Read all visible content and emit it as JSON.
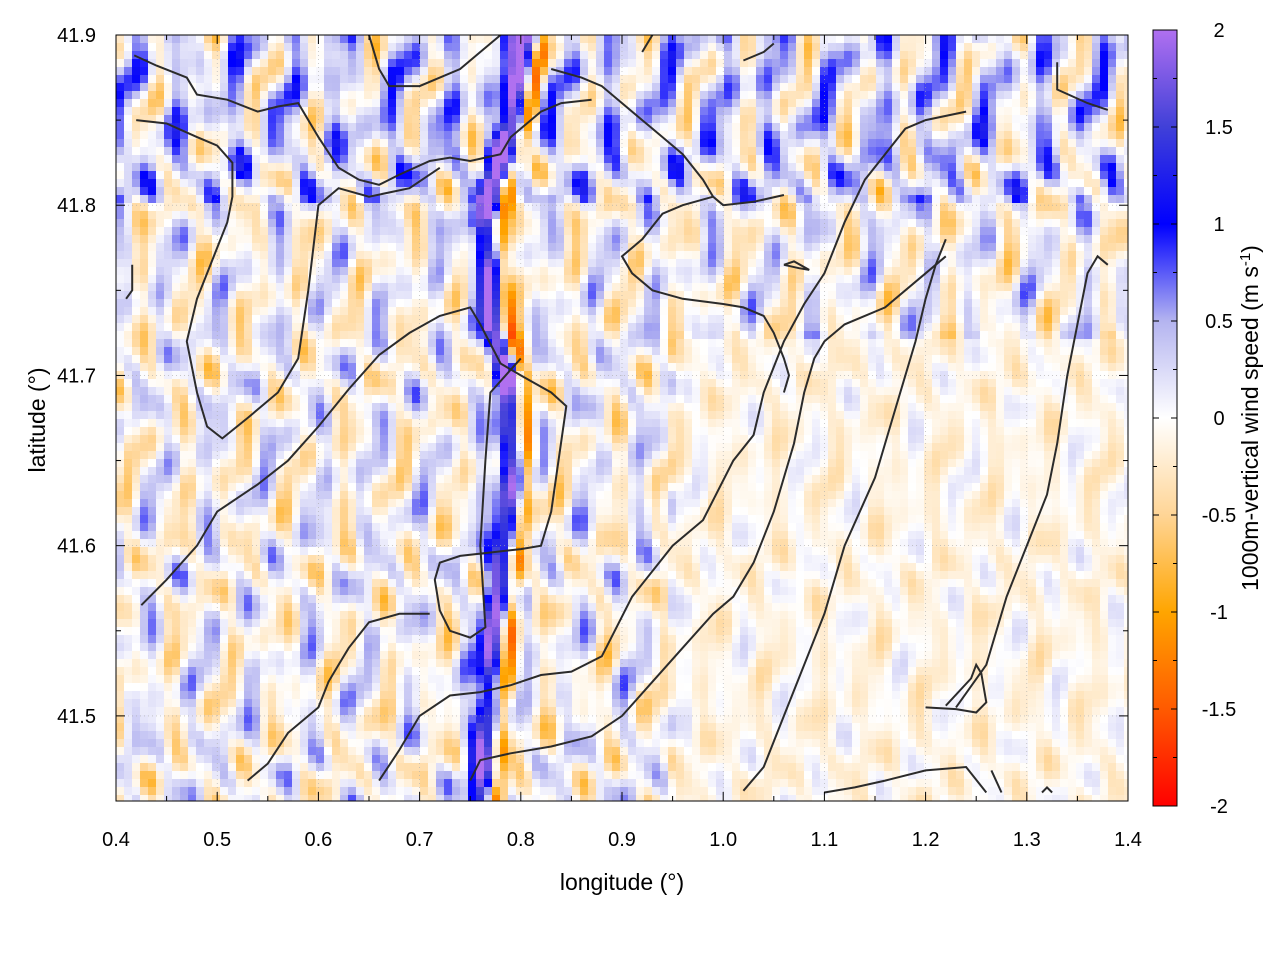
{
  "chart_data": {
    "type": "heatmap",
    "xlabel": "longitude (°)",
    "ylabel": "latitude (°)",
    "colorbar_label": "1000m-vertical wind speed (m s-1)",
    "colorbar_label_base": "1000m-vertical wind speed (m s",
    "colorbar_label_sup": "-1",
    "colorbar_label_end": ")",
    "xlim": [
      0.4,
      1.4
    ],
    "ylim": [
      41.45,
      41.9
    ],
    "clim": [
      -2,
      2
    ],
    "x_ticks": [
      {
        "value": 0.4,
        "label": "0.4"
      },
      {
        "value": 0.5,
        "label": "0.5"
      },
      {
        "value": 0.6,
        "label": "0.6"
      },
      {
        "value": 0.7,
        "label": "0.7"
      },
      {
        "value": 0.8,
        "label": "0.8"
      },
      {
        "value": 0.9,
        "label": "0.9"
      },
      {
        "value": 1.0,
        "label": "1.0"
      },
      {
        "value": 1.1,
        "label": "1.1"
      },
      {
        "value": 1.2,
        "label": "1.2"
      },
      {
        "value": 1.3,
        "label": "1.3"
      },
      {
        "value": 1.4,
        "label": "1.4"
      }
    ],
    "y_ticks": [
      {
        "value": 41.5,
        "label": "41.5"
      },
      {
        "value": 41.6,
        "label": "41.6"
      },
      {
        "value": 41.7,
        "label": "41.7"
      },
      {
        "value": 41.8,
        "label": "41.8"
      },
      {
        "value": 41.9,
        "label": "41.9"
      }
    ],
    "colorbar_ticks": [
      {
        "value": 2,
        "label": "2"
      },
      {
        "value": 1.5,
        "label": "1.5"
      },
      {
        "value": 1,
        "label": "1"
      },
      {
        "value": 0.5,
        "label": "0.5"
      },
      {
        "value": 0,
        "label": "0"
      },
      {
        "value": -0.5,
        "label": "-0.5"
      },
      {
        "value": -1,
        "label": "-1"
      },
      {
        "value": -1.5,
        "label": "-1.5"
      },
      {
        "value": -2,
        "label": "-2"
      }
    ],
    "colormap": [
      {
        "value": -2,
        "color": "#ff0000"
      },
      {
        "value": -1.5,
        "color": "#ff5a00"
      },
      {
        "value": -1,
        "color": "#ffa500"
      },
      {
        "value": -0.5,
        "color": "#ffd596"
      },
      {
        "value": 0,
        "color": "#ffffff"
      },
      {
        "value": 0.5,
        "color": "#b4b4f0"
      },
      {
        "value": 1,
        "color": "#0000ff"
      },
      {
        "value": 1.5,
        "color": "#4040d8"
      },
      {
        "value": 2,
        "color": "#b070f0"
      }
    ],
    "grid": true,
    "ridge": [
      [
        0.76,
        41.45
      ],
      [
        0.765,
        41.5
      ],
      [
        0.772,
        41.55
      ],
      [
        0.782,
        41.6
      ],
      [
        0.79,
        41.65
      ],
      [
        0.785,
        41.7
      ],
      [
        0.77,
        41.73
      ],
      [
        0.765,
        41.76
      ],
      [
        0.762,
        41.79
      ],
      [
        0.775,
        41.82
      ],
      [
        0.79,
        41.85
      ],
      [
        0.8,
        41.88
      ],
      [
        0.805,
        41.9
      ]
    ],
    "contours": [
      [
        [
          0.416,
          41.765
        ],
        [
          0.416,
          41.75
        ],
        [
          0.41,
          41.745
        ]
      ],
      [
        [
          0.418,
          41.888
        ],
        [
          0.44,
          41.882
        ],
        [
          0.47,
          41.875
        ],
        [
          0.48,
          41.865
        ],
        [
          0.51,
          41.862
        ],
        [
          0.54,
          41.855
        ],
        [
          0.56,
          41.858
        ],
        [
          0.58,
          41.86
        ],
        [
          0.6,
          41.84
        ],
        [
          0.62,
          41.822
        ],
        [
          0.64,
          41.815
        ],
        [
          0.66,
          41.812
        ],
        [
          0.68,
          41.818
        ],
        [
          0.71,
          41.826
        ],
        [
          0.73,
          41.828
        ],
        [
          0.75,
          41.826
        ],
        [
          0.78,
          41.83
        ],
        [
          0.79,
          41.84
        ],
        [
          0.82,
          41.855
        ],
        [
          0.84,
          41.86
        ],
        [
          0.87,
          41.862
        ]
      ],
      [
        [
          0.42,
          41.85
        ],
        [
          0.45,
          41.848
        ],
        [
          0.48,
          41.84
        ],
        [
          0.5,
          41.835
        ],
        [
          0.515,
          41.825
        ],
        [
          0.515,
          41.805
        ],
        [
          0.51,
          41.79
        ],
        [
          0.48,
          41.745
        ],
        [
          0.47,
          41.72
        ],
        [
          0.48,
          41.69
        ],
        [
          0.49,
          41.67
        ],
        [
          0.505,
          41.663
        ],
        [
          0.53,
          41.675
        ],
        [
          0.56,
          41.69
        ],
        [
          0.58,
          41.71
        ],
        [
          0.59,
          41.75
        ],
        [
          0.6,
          41.8
        ],
        [
          0.62,
          41.81
        ],
        [
          0.65,
          41.805
        ],
        [
          0.69,
          41.81
        ],
        [
          0.72,
          41.822
        ]
      ],
      [
        [
          0.425,
          41.565
        ],
        [
          0.45,
          41.58
        ],
        [
          0.48,
          41.6
        ],
        [
          0.5,
          41.62
        ],
        [
          0.54,
          41.636
        ],
        [
          0.57,
          41.65
        ],
        [
          0.6,
          41.67
        ],
        [
          0.63,
          41.692
        ],
        [
          0.66,
          41.712
        ],
        [
          0.69,
          41.725
        ],
        [
          0.72,
          41.735
        ],
        [
          0.75,
          41.74
        ],
        [
          0.76,
          41.73
        ],
        [
          0.78,
          41.707
        ],
        [
          0.8,
          41.7
        ],
        [
          0.83,
          41.69
        ],
        [
          0.845,
          41.682
        ],
        [
          0.83,
          41.62
        ],
        [
          0.82,
          41.6
        ],
        [
          0.8,
          41.598
        ],
        [
          0.77,
          41.596
        ],
        [
          0.74,
          41.594
        ],
        [
          0.72,
          41.59
        ],
        [
          0.715,
          41.58
        ],
        [
          0.72,
          41.562
        ],
        [
          0.73,
          41.55
        ],
        [
          0.75,
          41.546
        ],
        [
          0.765,
          41.552
        ],
        [
          0.76,
          41.6
        ],
        [
          0.765,
          41.65
        ],
        [
          0.77,
          41.69
        ],
        [
          0.785,
          41.7
        ],
        [
          0.8,
          41.71
        ]
      ],
      [
        [
          0.53,
          41.462
        ],
        [
          0.55,
          41.472
        ],
        [
          0.57,
          41.49
        ],
        [
          0.6,
          41.505
        ],
        [
          0.61,
          41.52
        ],
        [
          0.62,
          41.53
        ],
        [
          0.63,
          41.54
        ],
        [
          0.65,
          41.555
        ],
        [
          0.68,
          41.56
        ],
        [
          0.71,
          41.56
        ]
      ],
      [
        [
          0.66,
          41.462
        ],
        [
          0.68,
          41.48
        ],
        [
          0.7,
          41.5
        ],
        [
          0.73,
          41.512
        ],
        [
          0.76,
          41.514
        ],
        [
          0.79,
          41.518
        ],
        [
          0.82,
          41.524
        ],
        [
          0.85,
          41.526
        ],
        [
          0.88,
          41.535
        ],
        [
          0.91,
          41.57
        ],
        [
          0.95,
          41.6
        ],
        [
          0.98,
          41.615
        ],
        [
          1.01,
          41.65
        ],
        [
          1.03,
          41.665
        ],
        [
          1.04,
          41.69
        ],
        [
          1.06,
          41.72
        ],
        [
          1.08,
          41.742
        ],
        [
          1.1,
          41.76
        ],
        [
          1.12,
          41.79
        ],
        [
          1.14,
          41.815
        ],
        [
          1.16,
          41.83
        ],
        [
          1.18,
          41.845
        ],
        [
          1.2,
          41.85
        ],
        [
          1.24,
          41.855
        ]
      ],
      [
        [
          0.75,
          41.462
        ],
        [
          0.76,
          41.474
        ],
        [
          0.79,
          41.478
        ],
        [
          0.83,
          41.482
        ],
        [
          0.87,
          41.488
        ],
        [
          0.9,
          41.5
        ],
        [
          0.93,
          41.52
        ],
        [
          0.96,
          41.54
        ],
        [
          0.99,
          41.56
        ],
        [
          1.01,
          41.57
        ],
        [
          1.03,
          41.59
        ],
        [
          1.05,
          41.62
        ],
        [
          1.07,
          41.66
        ],
        [
          1.08,
          41.69
        ],
        [
          1.09,
          41.71
        ],
        [
          1.1,
          41.72
        ],
        [
          1.12,
          41.73
        ],
        [
          1.16,
          41.74
        ],
        [
          1.2,
          41.76
        ],
        [
          1.22,
          41.77
        ]
      ],
      [
        [
          1.02,
          41.456
        ],
        [
          1.04,
          41.47
        ],
        [
          1.06,
          41.5
        ],
        [
          1.08,
          41.53
        ],
        [
          1.1,
          41.56
        ],
        [
          1.12,
          41.6
        ],
        [
          1.15,
          41.64
        ],
        [
          1.17,
          41.68
        ],
        [
          1.19,
          41.72
        ],
        [
          1.2,
          41.745
        ],
        [
          1.21,
          41.765
        ],
        [
          1.22,
          41.78
        ]
      ],
      [
        [
          1.1,
          41.455
        ],
        [
          1.13,
          41.458
        ],
        [
          1.16,
          41.462
        ],
        [
          1.2,
          41.468
        ],
        [
          1.24,
          41.47
        ],
        [
          1.26,
          41.455
        ]
      ],
      [
        [
          1.2,
          41.505
        ],
        [
          1.23,
          41.504
        ],
        [
          1.25,
          41.502
        ],
        [
          1.26,
          41.508
        ],
        [
          1.255,
          41.525
        ],
        [
          1.25,
          41.53
        ],
        [
          1.245,
          41.522
        ],
        [
          1.22,
          41.506
        ]
      ],
      [
        [
          1.06,
          41.765
        ],
        [
          1.075,
          41.763
        ],
        [
          1.085,
          41.762
        ],
        [
          1.07,
          41.767
        ],
        [
          1.06,
          41.765
        ]
      ],
      [
        [
          1.23,
          41.505
        ],
        [
          1.26,
          41.53
        ],
        [
          1.28,
          41.57
        ],
        [
          1.3,
          41.6
        ],
        [
          1.32,
          41.63
        ],
        [
          1.33,
          41.66
        ],
        [
          1.34,
          41.7
        ],
        [
          1.35,
          41.73
        ],
        [
          1.36,
          41.76
        ],
        [
          1.37,
          41.77
        ],
        [
          1.38,
          41.765
        ]
      ],
      [
        [
          1.33,
          41.884
        ],
        [
          1.33,
          41.868
        ],
        [
          1.36,
          41.86
        ],
        [
          1.38,
          41.856
        ]
      ],
      [
        [
          0.92,
          41.89
        ],
        [
          0.93,
          41.9
        ]
      ],
      [
        [
          1.02,
          41.885
        ],
        [
          1.04,
          41.89
        ],
        [
          1.05,
          41.895
        ]
      ],
      [
        [
          0.65,
          41.9
        ],
        [
          0.66,
          41.88
        ],
        [
          0.67,
          41.87
        ],
        [
          0.7,
          41.87
        ],
        [
          0.74,
          41.88
        ],
        [
          0.76,
          41.89
        ],
        [
          0.78,
          41.9
        ]
      ],
      [
        [
          0.83,
          41.88
        ],
        [
          0.86,
          41.875
        ],
        [
          0.88,
          41.87
        ],
        [
          0.9,
          41.86
        ],
        [
          0.92,
          41.85
        ],
        [
          0.94,
          41.84
        ],
        [
          0.96,
          41.83
        ],
        [
          0.98,
          41.815
        ],
        [
          0.99,
          41.805
        ],
        [
          1.0,
          41.8
        ],
        [
          1.03,
          41.802
        ],
        [
          1.06,
          41.806
        ]
      ],
      [
        [
          0.99,
          41.805
        ],
        [
          0.96,
          41.8
        ],
        [
          0.94,
          41.795
        ],
        [
          0.92,
          41.78
        ],
        [
          0.9,
          41.77
        ],
        [
          0.91,
          41.76
        ],
        [
          0.93,
          41.75
        ],
        [
          0.96,
          41.745
        ],
        [
          1.0,
          41.742
        ],
        [
          1.02,
          41.74
        ],
        [
          1.04,
          41.735
        ],
        [
          1.05,
          41.725
        ],
        [
          1.06,
          41.71
        ],
        [
          1.065,
          41.7
        ],
        [
          1.06,
          41.69
        ]
      ],
      [
        [
          1.265,
          41.468
        ],
        [
          1.275,
          41.455
        ]
      ],
      [
        [
          1.315,
          41.455
        ],
        [
          1.32,
          41.458
        ],
        [
          1.325,
          41.455
        ]
      ]
    ]
  }
}
